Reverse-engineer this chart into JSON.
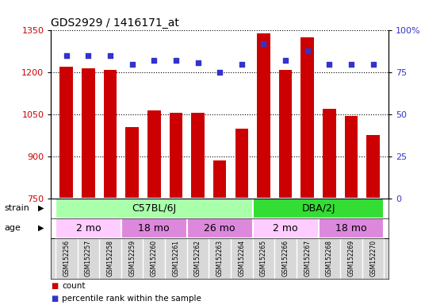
{
  "title": "GDS2929 / 1416171_at",
  "samples": [
    "GSM152256",
    "GSM152257",
    "GSM152258",
    "GSM152259",
    "GSM152260",
    "GSM152261",
    "GSM152262",
    "GSM152263",
    "GSM152264",
    "GSM152265",
    "GSM152266",
    "GSM152267",
    "GSM152268",
    "GSM152269",
    "GSM152270"
  ],
  "counts": [
    1220,
    1215,
    1210,
    1005,
    1065,
    1055,
    1055,
    885,
    1000,
    1340,
    1210,
    1325,
    1070,
    1045,
    975
  ],
  "percentile_ranks": [
    85,
    85,
    85,
    80,
    82,
    82,
    81,
    75,
    80,
    92,
    82,
    88,
    80,
    80,
    80
  ],
  "ylim_left": [
    750,
    1350
  ],
  "ylim_right": [
    0,
    100
  ],
  "yticks_left": [
    750,
    900,
    1050,
    1200,
    1350
  ],
  "yticks_right": [
    0,
    25,
    50,
    75,
    100
  ],
  "ytick_labels_right": [
    "0",
    "25",
    "50",
    "75",
    "100%"
  ],
  "bar_color": "#cc0000",
  "dot_color": "#3333cc",
  "strain_groups": [
    {
      "label": "C57BL/6J",
      "start": 0,
      "end": 9,
      "color": "#aaffaa"
    },
    {
      "label": "DBA/2J",
      "start": 9,
      "end": 15,
      "color": "#33dd33"
    }
  ],
  "age_groups": [
    {
      "label": "2 mo",
      "start": 0,
      "end": 3,
      "color": "#ffccff"
    },
    {
      "label": "18 mo",
      "start": 3,
      "end": 6,
      "color": "#dd88dd"
    },
    {
      "label": "26 mo",
      "start": 6,
      "end": 9,
      "color": "#dd88dd"
    },
    {
      "label": "2 mo",
      "start": 9,
      "end": 12,
      "color": "#ffccff"
    },
    {
      "label": "18 mo",
      "start": 12,
      "end": 15,
      "color": "#dd88dd"
    }
  ],
  "bar_color_legend": "#cc0000",
  "dot_color_legend": "#3333cc",
  "left_axis_color": "#cc0000",
  "right_axis_color": "#3333cc",
  "sample_bg_color": "#d8d8d8",
  "chart_bg_color": "#ffffff",
  "grid_color": "#000000"
}
